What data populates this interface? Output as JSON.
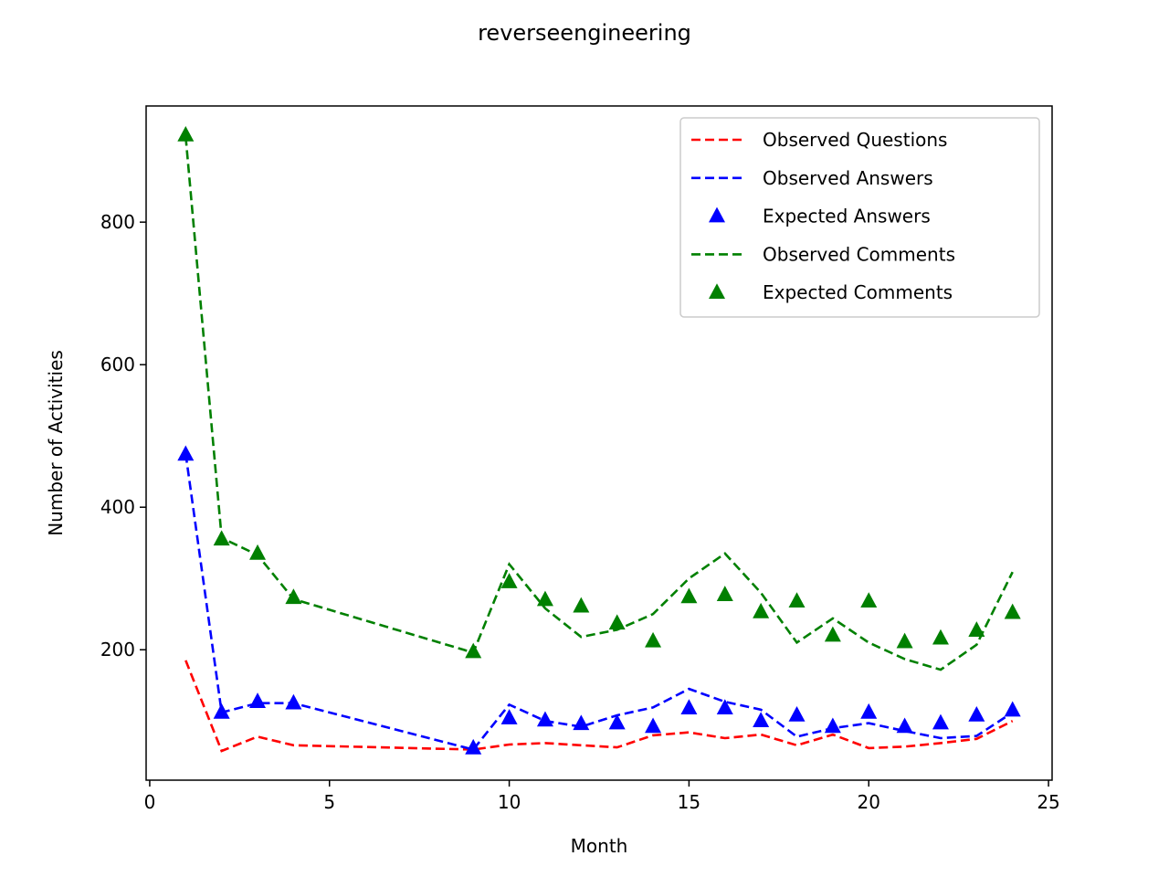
{
  "chart_data": {
    "type": "line",
    "title": "reverseengineering",
    "xlabel": "Month",
    "ylabel": "Number of Activities",
    "xlim": [
      -0.1,
      25.1
    ],
    "ylim": [
      17,
      963
    ],
    "xticks": [
      0,
      5,
      10,
      15,
      20,
      25
    ],
    "yticks": [
      200,
      400,
      600,
      800
    ],
    "grid": false,
    "legend_position": "top-right",
    "x": [
      1,
      2,
      3,
      4,
      9,
      10,
      11,
      12,
      13,
      14,
      15,
      16,
      17,
      18,
      19,
      20,
      21,
      22,
      23,
      24
    ],
    "series": [
      {
        "name": "Observed Questions",
        "style": "dashed-line",
        "color": "#ff0000",
        "values": [
          185,
          58,
          78,
          66,
          60,
          67,
          69,
          66,
          63,
          80,
          84,
          76,
          81,
          66,
          81,
          62,
          64,
          69,
          75,
          100
        ]
      },
      {
        "name": "Observed Answers",
        "style": "dashed-line",
        "color": "#0000ff",
        "values": [
          475,
          112,
          125,
          125,
          60,
          123,
          100,
          92,
          108,
          119,
          145,
          127,
          116,
          78,
          90,
          97,
          86,
          76,
          79,
          112
        ]
      },
      {
        "name": "Expected Answers",
        "style": "triangle-marker",
        "color": "#0000ff",
        "values": [
          474,
          112,
          127,
          125,
          62,
          104,
          101,
          96,
          97,
          92,
          118,
          118,
          100,
          108,
          92,
          112,
          92,
          97,
          108,
          115
        ]
      },
      {
        "name": "Observed Comments",
        "style": "dashed-line",
        "color": "#008000",
        "values": [
          920,
          357,
          333,
          271,
          196,
          320,
          258,
          218,
          228,
          250,
          300,
          335,
          280,
          210,
          244,
          210,
          187,
          172,
          207,
          309
        ]
      },
      {
        "name": "Expected Comments",
        "style": "triangle-marker",
        "color": "#008000",
        "values": [
          922,
          355,
          335,
          273,
          197,
          295,
          270,
          261,
          237,
          212,
          274,
          277,
          253,
          268,
          220,
          268,
          211,
          216,
          227,
          252
        ]
      }
    ]
  }
}
